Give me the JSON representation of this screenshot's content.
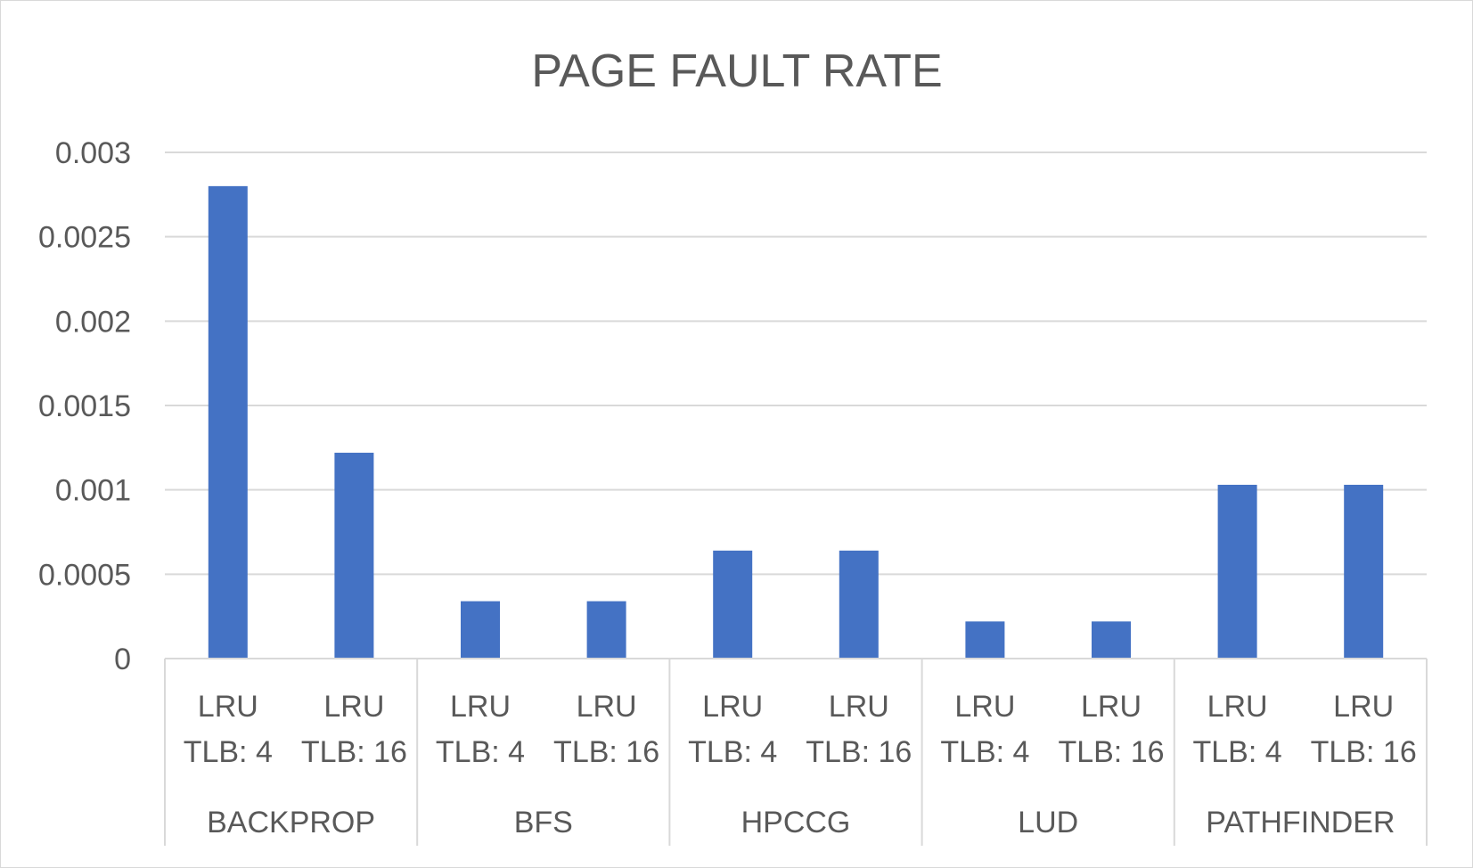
{
  "chart_data": {
    "type": "bar",
    "title": "PAGE FAULT RATE",
    "xlabel": "",
    "ylabel": "",
    "ylim": [
      0,
      0.003
    ],
    "yticks": [
      "0",
      "0.0005",
      "0.001",
      "0.0015",
      "0.002",
      "0.0025",
      "0.003"
    ],
    "grid": true,
    "legend": "none",
    "bar_color": "#4472C4",
    "groups": [
      {
        "name": "BACKPROP",
        "categories": [
          {
            "line1": "LRU",
            "line2": "TLB: 4",
            "value": 0.0028
          },
          {
            "line1": "LRU",
            "line2": "TLB: 16",
            "value": 0.00122
          }
        ]
      },
      {
        "name": "BFS",
        "categories": [
          {
            "line1": "LRU",
            "line2": "TLB: 4",
            "value": 0.00034
          },
          {
            "line1": "LRU",
            "line2": "TLB: 16",
            "value": 0.00034
          }
        ]
      },
      {
        "name": "HPCCG",
        "categories": [
          {
            "line1": "LRU",
            "line2": "TLB: 4",
            "value": 0.00064
          },
          {
            "line1": "LRU",
            "line2": "TLB: 16",
            "value": 0.00064
          }
        ]
      },
      {
        "name": "LUD",
        "categories": [
          {
            "line1": "LRU",
            "line2": "TLB: 4",
            "value": 0.00022
          },
          {
            "line1": "LRU",
            "line2": "TLB: 16",
            "value": 0.00022
          }
        ]
      },
      {
        "name": "PATHFINDER",
        "categories": [
          {
            "line1": "LRU",
            "line2": "TLB: 4",
            "value": 0.00103
          },
          {
            "line1": "LRU",
            "line2": "TLB: 16",
            "value": 0.00103
          }
        ]
      }
    ]
  }
}
